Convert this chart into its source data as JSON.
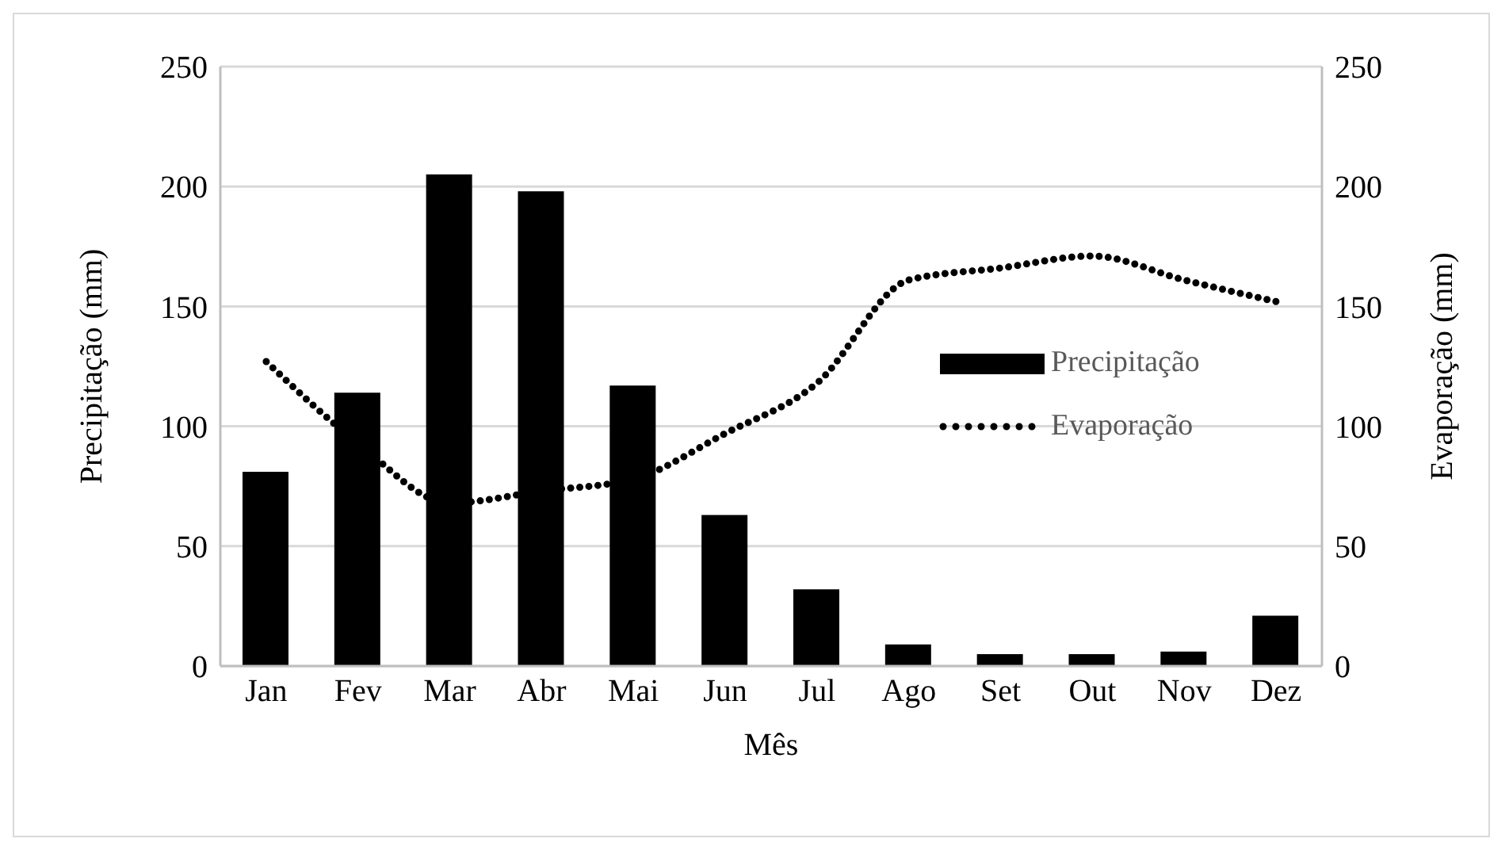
{
  "chart_data": {
    "type": "bar",
    "xlabel": "Mês",
    "ylabel": "Precipitação (mm)",
    "y2label": "Evaporação (mm)",
    "categories": [
      "Jan",
      "Fev",
      "Mar",
      "Abr",
      "Mai",
      "Jun",
      "Jul",
      "Ago",
      "Set",
      "Out",
      "Nov",
      "Dez"
    ],
    "series": [
      {
        "name": "Precipitação",
        "color": "#000000",
        "values": [
          81,
          114,
          205,
          198,
          117,
          63,
          32,
          9,
          5,
          5,
          6,
          21
        ]
      },
      {
        "name": "Evaporação",
        "type": "line",
        "axis": "y2",
        "color": "#000000",
        "line_style": "dotted",
        "values": [
          127,
          93,
          68,
          73,
          78,
          97,
          118,
          161,
          166,
          171,
          161,
          152
        ]
      }
    ],
    "ylim": [
      0,
      250
    ],
    "yticks": [
      0,
      50,
      100,
      150,
      200,
      250
    ],
    "y2lim": [
      0,
      250
    ],
    "y2ticks": [
      0,
      50,
      100,
      150,
      200,
      250
    ],
    "grid": "y",
    "legend": "right",
    "marker": "none"
  }
}
